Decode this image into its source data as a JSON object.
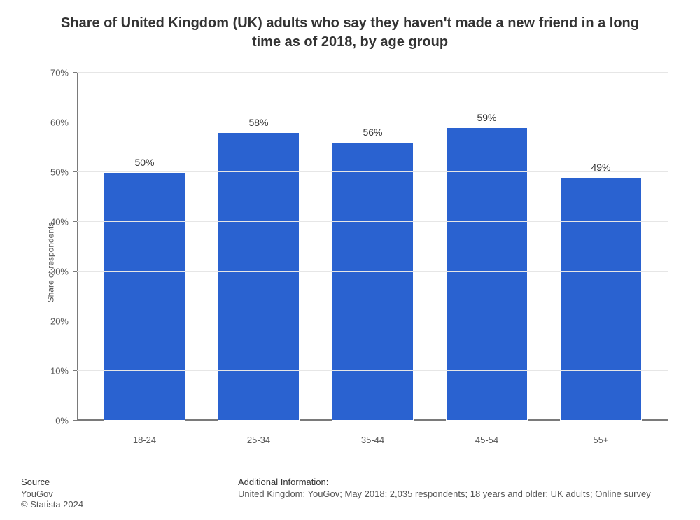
{
  "title": "Share of United Kingdom (UK) adults who say they haven't made a new friend in a long time as of 2018, by age group",
  "chart": {
    "type": "bar",
    "ylabel": "Share of respondents",
    "categories": [
      "18-24",
      "25-34",
      "35-44",
      "45-54",
      "55+"
    ],
    "values": [
      50,
      58,
      56,
      59,
      49
    ],
    "value_labels": [
      "50%",
      "58%",
      "56%",
      "59%",
      "49%"
    ],
    "bar_color": "#2a62d0",
    "bar_border_color": "#ffffff",
    "ylim": [
      0,
      70
    ],
    "ytick_step": 10,
    "ytick_suffix": "%",
    "grid_color": "#e6e6e6",
    "axis_color": "#7a7a7a",
    "background_color": "#ffffff",
    "title_fontsize": 20,
    "title_color": "#333333",
    "label_fontsize": 13,
    "tick_fontsize": 13,
    "ylabel_fontsize": 12,
    "bar_width_ratio": 0.72,
    "value_label_fontsize": 14
  },
  "footer": {
    "source_heading": "Source",
    "source_text": "YouGov",
    "copyright": "© Statista 2024",
    "info_heading": "Additional Information:",
    "info_text": "United Kingdom; YouGov; May 2018; 2,035 respondents; 18 years and older; UK adults; Online survey",
    "font_size": 13
  }
}
